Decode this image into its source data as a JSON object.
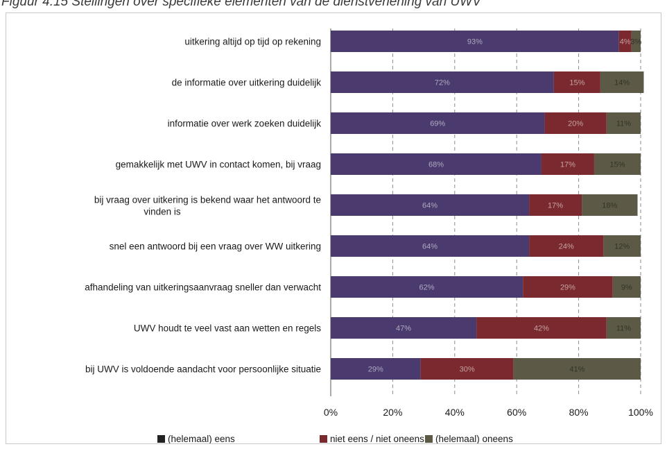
{
  "caption": "Figuur 4.15 Stellingen over specifieke elementen van de dienstverlening van UWV",
  "chart_data": {
    "type": "bar",
    "orientation": "horizontal",
    "stacked": true,
    "categories": [
      "uitkering altijd op tijd op rekening",
      "de informatie over uitkering duidelijk",
      "informatie over werk zoeken duidelijk",
      "gemakkelijk met UWV in contact komen, bij vraag",
      "bij vraag over uitkering is bekend waar het antwoord te vinden is",
      "snel een antwoord bij een vraag over WW uitkering",
      "afhandeling van uitkeringsaanvraag sneller dan verwacht",
      "UWV houdt te veel vast aan wetten en regels",
      "bij UWV is voldoende aandacht voor persoonlijke situatie"
    ],
    "series": [
      {
        "name": "(helemaal) eens",
        "color": "#4b3a6e",
        "values": [
          93,
          72,
          69,
          68,
          64,
          64,
          62,
          47,
          29
        ]
      },
      {
        "name": "niet eens / niet oneens",
        "color": "#7a2a2e",
        "values": [
          4,
          15,
          20,
          17,
          17,
          24,
          29,
          42,
          30
        ]
      },
      {
        "name": "(helemaal) oneens",
        "color": "#5c5a46",
        "values": [
          3,
          14,
          11,
          15,
          18,
          12,
          9,
          11,
          41
        ]
      }
    ],
    "data_labels": [
      [
        "93%",
        "4%",
        "3%"
      ],
      [
        "72%",
        "15%",
        "14%"
      ],
      [
        "69%",
        "20%",
        "11%"
      ],
      [
        "68%",
        "17%",
        "15%"
      ],
      [
        "64%",
        "17%",
        "18%"
      ],
      [
        "64%",
        "24%",
        "12%"
      ],
      [
        "62%",
        "29%",
        "9%"
      ],
      [
        "47%",
        "42%",
        "11%"
      ],
      [
        "29%",
        "30%",
        "41%"
      ]
    ],
    "xlim": [
      0,
      100
    ],
    "x_ticks": [
      "0%",
      "20%",
      "40%",
      "60%",
      "80%",
      "100%"
    ],
    "grid": true,
    "legend_position": "bottom"
  }
}
